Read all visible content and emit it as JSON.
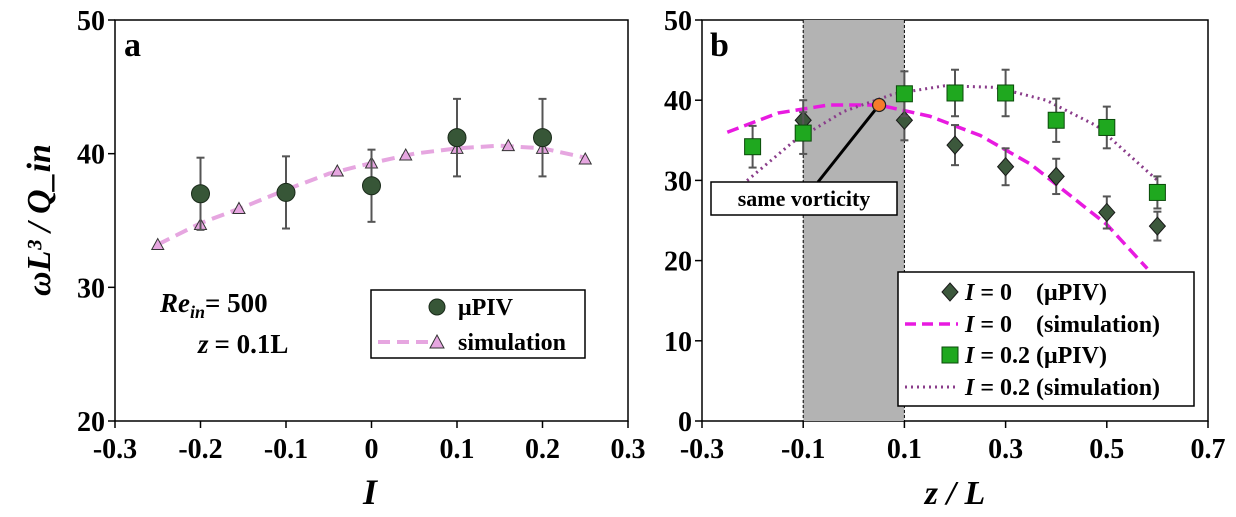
{
  "chart_data": [
    {
      "panel": "a",
      "type": "scatter",
      "xlabel": "I",
      "ylabel": "ωL³ / Q_in",
      "xlim": [
        -0.3,
        0.3
      ],
      "ylim": [
        20,
        50
      ],
      "xticks": [
        "-0.3",
        "-0.2",
        "-0.1",
        "0",
        "0.1",
        "0.2",
        "0.3"
      ],
      "yticks": [
        "20",
        "30",
        "40",
        "50"
      ],
      "annotation": {
        "re_prefix": "Re",
        "re_sub": "in",
        "re_value": "= 500",
        "z_prefix": "z",
        "z_value": "= 0.1L"
      },
      "series": [
        {
          "name": "μPIV",
          "marker": "circle",
          "color": "#375637",
          "x": [
            -0.2,
            -0.1,
            0,
            0.1,
            0.2
          ],
          "y": [
            37.0,
            37.1,
            37.6,
            41.2,
            41.2
          ],
          "err": [
            2.7,
            2.7,
            2.7,
            2.9,
            2.9
          ]
        },
        {
          "name": "simulation",
          "marker": "triangle",
          "line": "dashed",
          "color": "#f0a0ea",
          "x": [
            -0.25,
            -0.2,
            -0.15,
            -0.1,
            -0.05,
            0,
            0.05,
            0.1,
            0.15,
            0.2,
            0.25
          ],
          "y": [
            33.2,
            34.8,
            36.0,
            37.3,
            38.5,
            39.3,
            40.0,
            40.4,
            40.6,
            40.4,
            39.7
          ],
          "markers_x": [
            -0.25,
            -0.2,
            -0.155,
            -0.1,
            -0.04,
            0,
            0.04,
            0.1,
            0.16,
            0.2,
            0.25
          ],
          "markers_y": [
            33.2,
            34.7,
            35.9,
            37.3,
            38.7,
            39.3,
            39.9,
            40.4,
            40.6,
            40.4,
            39.6
          ]
        }
      ]
    },
    {
      "panel": "b",
      "type": "scatter",
      "xlabel": "z / L",
      "ylabel": "",
      "xlim": [
        -0.3,
        0.7
      ],
      "ylim": [
        0,
        50
      ],
      "xticks": [
        "-0.3",
        "-0.1",
        "0.1",
        "0.3",
        "0.5",
        "0.7"
      ],
      "yticks": [
        "0",
        "10",
        "20",
        "30",
        "40",
        "50"
      ],
      "shaded_region": [
        -0.1,
        0.1
      ],
      "callout": {
        "label": "same vorticity",
        "point": [
          0.05,
          39.4
        ]
      },
      "series": [
        {
          "name": "I = 0    (μPIV)",
          "label_i": "I",
          "label_rest": " = 0    (μPIV)",
          "marker": "diamond",
          "color": "#3c583c",
          "x": [
            -0.1,
            0.1,
            0.2,
            0.3,
            0.4,
            0.5,
            0.6
          ],
          "y": [
            37.5,
            37.5,
            34.4,
            31.7,
            30.5,
            26.0,
            24.3
          ],
          "err": [
            2.5,
            2.5,
            2.5,
            2.3,
            2.2,
            2.0,
            1.8
          ]
        },
        {
          "name": "I = 0    (simulation)",
          "label_i": "I",
          "label_rest": " = 0    (simulation)",
          "line": "dashed",
          "color": "#e81ae0",
          "x": [
            -0.25,
            -0.15,
            -0.05,
            0.05,
            0.15,
            0.25,
            0.35,
            0.45,
            0.5,
            0.58
          ],
          "y": [
            36.0,
            38.4,
            39.4,
            39.4,
            38.0,
            35.6,
            32.0,
            27.0,
            24.5,
            19.0
          ]
        },
        {
          "name": "I = 0.2 (μPIV)",
          "label_i": "I",
          "label_rest": " = 0.2 (μPIV)",
          "marker": "square",
          "color": "#1fa81f",
          "x": [
            -0.2,
            -0.1,
            0.1,
            0.2,
            0.3,
            0.4,
            0.5,
            0.6
          ],
          "y": [
            34.2,
            35.9,
            40.8,
            40.9,
            40.9,
            37.5,
            36.6,
            28.5
          ],
          "err": [
            2.6,
            2.6,
            2.8,
            2.9,
            2.9,
            2.7,
            2.6,
            2.0
          ]
        },
        {
          "name": "I = 0.2 (simulation)",
          "label_i": "I",
          "label_rest": " = 0.2 (simulation)",
          "line": "dotted",
          "color": "#8a3c8a",
          "x": [
            -0.22,
            -0.12,
            -0.02,
            0.08,
            0.18,
            0.28,
            0.38,
            0.48,
            0.6
          ],
          "y": [
            29.5,
            34.8,
            38.6,
            40.8,
            41.8,
            41.6,
            40.0,
            36.8,
            30.0
          ]
        }
      ]
    }
  ]
}
